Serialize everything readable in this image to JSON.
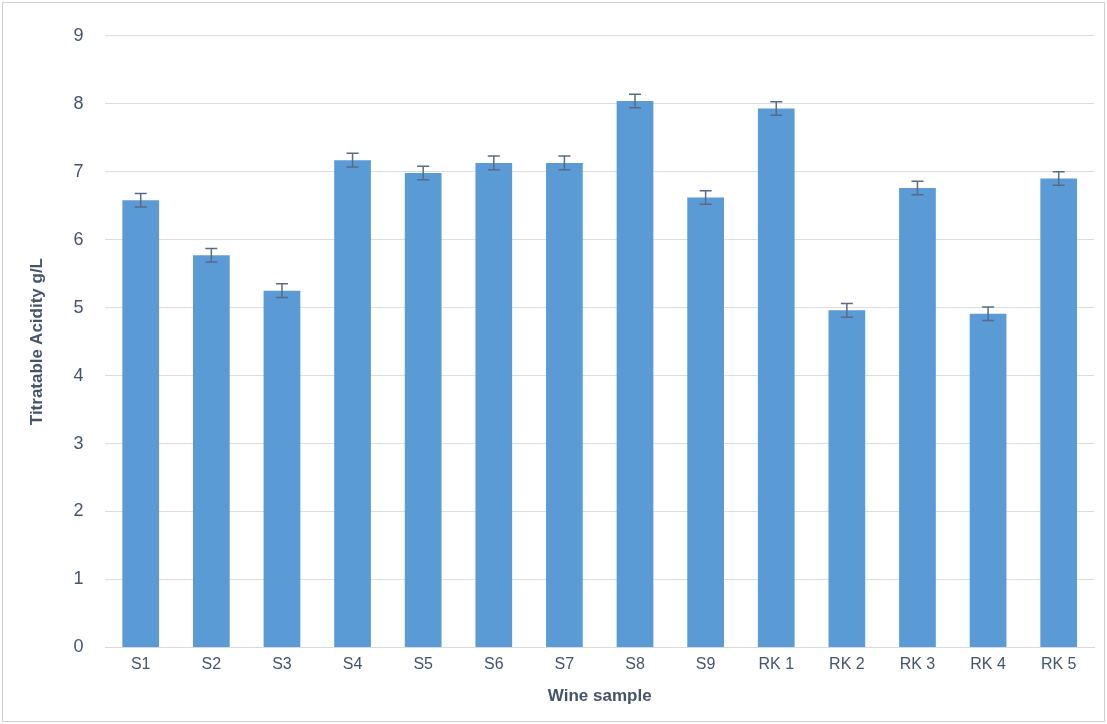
{
  "chart_data": {
    "type": "bar",
    "xlabel": "Wine sample",
    "ylabel": "Titratable Acidity g/L",
    "categories": [
      "S1",
      "S2",
      "S3",
      "S4",
      "S5",
      "S6",
      "S7",
      "S8",
      "S9",
      "RK 1",
      "RK 2",
      "RK 3",
      "RK 4",
      "RK 5"
    ],
    "values": [
      6.58,
      5.77,
      5.25,
      7.17,
      6.98,
      7.13,
      7.13,
      8.04,
      6.62,
      7.93,
      4.96,
      6.76,
      4.91,
      6.9
    ],
    "errors": [
      0.1,
      0.1,
      0.1,
      0.1,
      0.1,
      0.1,
      0.1,
      0.1,
      0.1,
      0.1,
      0.1,
      0.1,
      0.1,
      0.1
    ],
    "color": "#5b9bd5",
    "ylim": [
      0,
      9
    ],
    "yticks": [
      0,
      1,
      2,
      3,
      4,
      5,
      6,
      7,
      8,
      9
    ],
    "grid": "y",
    "legend": false
  }
}
